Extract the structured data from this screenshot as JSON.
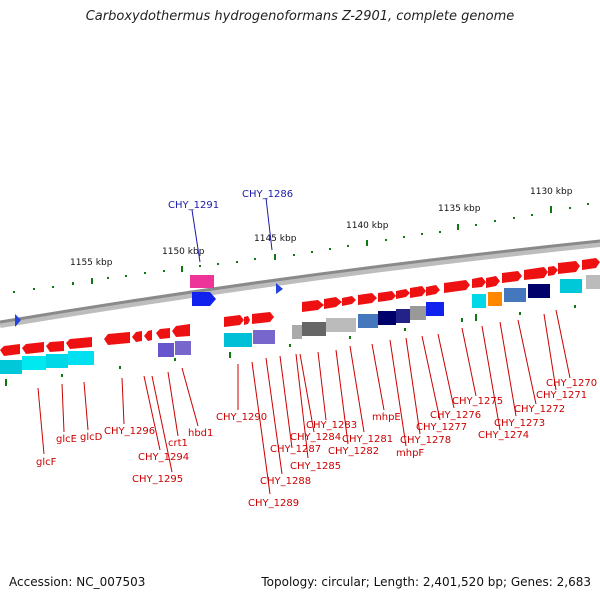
{
  "header": {
    "title": "Carboxydothermus hydrogenoformans Z-2901, complete genome"
  },
  "footer": {
    "accession": "Accession: NC_007503",
    "topology": "Topology: circular; Length: 2,401,520 bp; Genes: 2,683"
  },
  "colors": {
    "forward_feature": "#ee1111",
    "rna_feature": "#2222cc",
    "backbone": "#888888",
    "ticks": "#117711",
    "label_red": "#cc0000",
    "label_blue": "#1a1aaa"
  },
  "ticks": [
    {
      "label": "1130 kbp"
    },
    {
      "label": "1135 kbp"
    },
    {
      "label": "1140 kbp"
    },
    {
      "label": "1145 kbp"
    },
    {
      "label": "1150 kbp"
    },
    {
      "label": "1155 kbp"
    }
  ],
  "gene_labels": [
    {
      "text": "CHY_1291",
      "color": "blue"
    },
    {
      "text": "CHY_1286",
      "color": "blue"
    },
    {
      "text": "glcF",
      "color": "red"
    },
    {
      "text": "glcE",
      "color": "red"
    },
    {
      "text": "glcD",
      "color": "red"
    },
    {
      "text": "CHY_1296",
      "color": "red"
    },
    {
      "text": "CHY_1294",
      "color": "red"
    },
    {
      "text": "CHY_1295",
      "color": "red"
    },
    {
      "text": "crt1",
      "color": "red"
    },
    {
      "text": "hbd1",
      "color": "red"
    },
    {
      "text": "CHY_1290",
      "color": "red"
    },
    {
      "text": "CHY_1289",
      "color": "red"
    },
    {
      "text": "CHY_1288",
      "color": "red"
    },
    {
      "text": "CHY_1287",
      "color": "red"
    },
    {
      "text": "CHY_1285",
      "color": "red"
    },
    {
      "text": "CHY_1284",
      "color": "red"
    },
    {
      "text": "CHY_1283",
      "color": "red"
    },
    {
      "text": "CHY_1282",
      "color": "red"
    },
    {
      "text": "CHY_1281",
      "color": "red"
    },
    {
      "text": "mhpE",
      "color": "red"
    },
    {
      "text": "mhpF",
      "color": "red"
    },
    {
      "text": "CHY_1278",
      "color": "red"
    },
    {
      "text": "CHY_1277",
      "color": "red"
    },
    {
      "text": "CHY_1276",
      "color": "red"
    },
    {
      "text": "CHY_1275",
      "color": "red"
    },
    {
      "text": "CHY_1274",
      "color": "red"
    },
    {
      "text": "CHY_1273",
      "color": "red"
    },
    {
      "text": "CHY_1272",
      "color": "red"
    },
    {
      "text": "CHY_1271",
      "color": "red"
    },
    {
      "text": "CHY_1270",
      "color": "red"
    }
  ]
}
